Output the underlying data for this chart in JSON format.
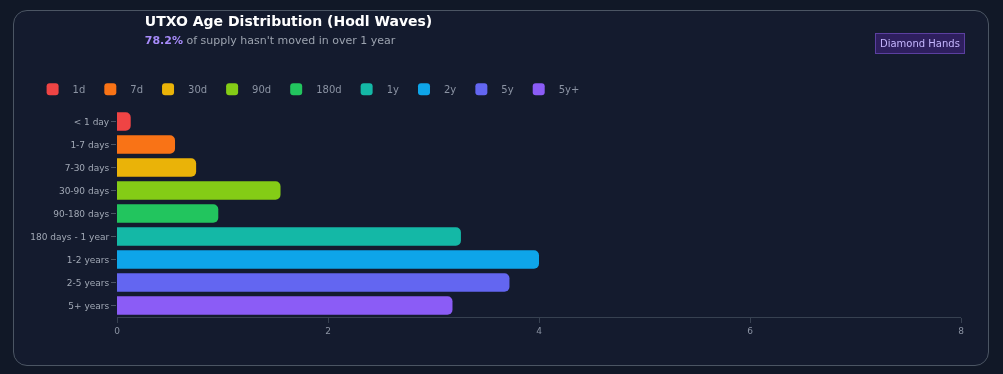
{
  "chart_data": {
    "type": "bar",
    "orientation": "horizontal",
    "title": "UTXO Age Distribution (Hodl Waves)",
    "subtitle": "78.2% of supply hasn't moved in over 1 year",
    "annotations": [
      "Diamond Hands"
    ],
    "categories": [
      "< 1 day",
      "1-7 days",
      "7-30 days",
      "30-90 days",
      "90-180 days",
      "180 days - 1 year",
      "1-2 years",
      "2-5 years",
      "5+ years"
    ],
    "series": [
      {
        "name": "1d",
        "color": "#ef4444",
        "values": [
          0.13,
          null,
          null,
          null,
          null,
          null,
          null,
          null,
          null
        ]
      },
      {
        "name": "7d",
        "color": "#f97316",
        "values": [
          null,
          0.55,
          null,
          null,
          null,
          null,
          null,
          null,
          null
        ]
      },
      {
        "name": "30d",
        "color": "#eab308",
        "values": [
          null,
          null,
          0.75,
          null,
          null,
          null,
          null,
          null,
          null
        ]
      },
      {
        "name": "90d",
        "color": "#84cc16",
        "values": [
          null,
          null,
          null,
          1.55,
          null,
          null,
          null,
          null,
          null
        ]
      },
      {
        "name": "180d",
        "color": "#22c55e",
        "values": [
          null,
          null,
          null,
          null,
          0.96,
          null,
          null,
          null,
          null
        ]
      },
      {
        "name": "1y",
        "color": "#14b8a6",
        "values": [
          null,
          null,
          null,
          null,
          null,
          3.26,
          null,
          null,
          null
        ]
      },
      {
        "name": "2y",
        "color": "#0ea5e9",
        "values": [
          null,
          null,
          null,
          null,
          null,
          null,
          4.0,
          null,
          null
        ]
      },
      {
        "name": "5y",
        "color": "#6366f1",
        "values": [
          null,
          null,
          null,
          null,
          null,
          null,
          null,
          3.72,
          null
        ]
      },
      {
        "name": "5y+",
        "color": "#8b5cf6",
        "values": [
          null,
          null,
          null,
          null,
          null,
          null,
          null,
          null,
          3.18
        ]
      }
    ],
    "xlim": [
      0,
      8
    ],
    "xticks": [
      0,
      2,
      4,
      6,
      8
    ],
    "grid": false,
    "legend": "top left"
  }
}
